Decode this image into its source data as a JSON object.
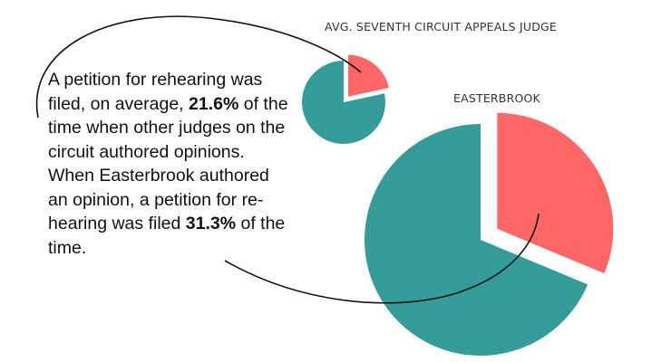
{
  "chart_data": [
    {
      "type": "pie",
      "title": "AVG. SEVENTH CIRCUIT APPEALS JUDGE",
      "slices": [
        {
          "value": 21.6,
          "color": "#ff6666",
          "exploded": true
        },
        {
          "value": 78.4,
          "color": "#369c9a",
          "exploded": false
        }
      ]
    },
    {
      "type": "pie",
      "title": "EASTERBROOK",
      "slices": [
        {
          "value": 31.3,
          "color": "#ff6666",
          "exploded": true
        },
        {
          "value": 68.7,
          "color": "#369c9a",
          "exploded": false
        }
      ]
    }
  ],
  "callout": {
    "segments": [
      {
        "text": "A petition for rehearing was filed, on average, ",
        "bold": false
      },
      {
        "text": "21.6%",
        "bold": true
      },
      {
        "text": " of the time when other judges on the circuit authored opinions. When Easterbrook authored an opinion, a petition for re-hearing was filed ",
        "bold": false
      },
      {
        "text": "31.3%",
        "bold": true
      },
      {
        "text": " of the time.",
        "bold": false
      }
    ]
  },
  "colors": {
    "highlight": "#ff6666",
    "base": "#369c9a",
    "connector": "#111111"
  }
}
